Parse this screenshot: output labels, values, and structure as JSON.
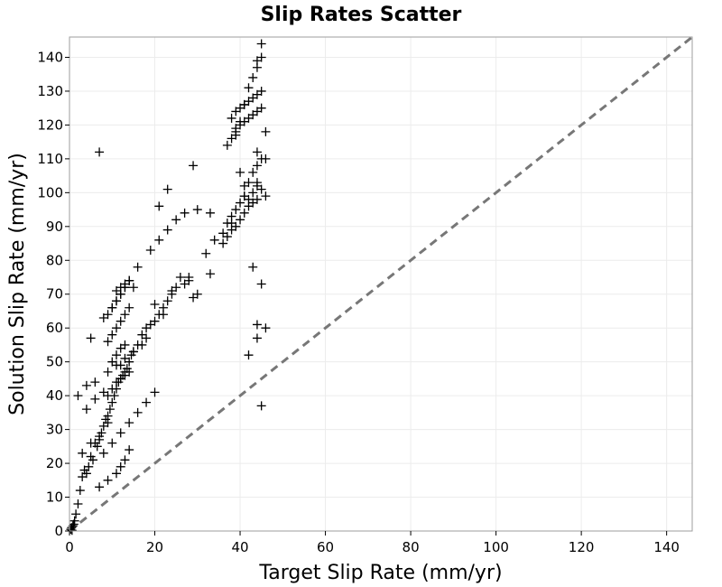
{
  "chart_data": {
    "type": "scatter",
    "title": "Slip Rates Scatter",
    "xlabel": "Target Slip Rate (mm/yr)",
    "ylabel": "Solution Slip Rate (mm/yr)",
    "xlim": [
      0,
      146
    ],
    "ylim": [
      0,
      146
    ],
    "xticks": [
      0,
      20,
      40,
      60,
      80,
      100,
      120,
      140
    ],
    "yticks": [
      0,
      10,
      20,
      30,
      40,
      50,
      60,
      70,
      80,
      90,
      100,
      110,
      120,
      130,
      140
    ],
    "grid": true,
    "marker": "plus",
    "reference_line": "y = x (dashed)",
    "colors": {
      "marker": "#000000",
      "reference": "#777777",
      "grid": "#ececec",
      "frame": "#9e9e9e"
    },
    "x": [
      0.3,
      0.5,
      0.8,
      1,
      0.6,
      1.2,
      1.5,
      2,
      2.5,
      3,
      3.5,
      4,
      4.5,
      5,
      5.5,
      6,
      6.5,
      7,
      7.5,
      8,
      8.5,
      9,
      9.5,
      10,
      10.5,
      11,
      11.5,
      12,
      12.5,
      13,
      13.5,
      14,
      14.5,
      15,
      16,
      17,
      18,
      19,
      20,
      21,
      22,
      23,
      24,
      25,
      26,
      27,
      28,
      29,
      30,
      32,
      33,
      34,
      36,
      37,
      38,
      39,
      40,
      41,
      42,
      43,
      44,
      45,
      46,
      9,
      10,
      11,
      12,
      13,
      14,
      10,
      11,
      12,
      13,
      14,
      15,
      8,
      9,
      10,
      11,
      12,
      13,
      14,
      9,
      10,
      11,
      12,
      13,
      14,
      11,
      12,
      13,
      14,
      10,
      11,
      12,
      13,
      38,
      39,
      40,
      41,
      42,
      43,
      44,
      45,
      39,
      40,
      41,
      42,
      43,
      44,
      45,
      37,
      38,
      39,
      40,
      41,
      42,
      43,
      44,
      45,
      36,
      37,
      38,
      39,
      40,
      41,
      42,
      43,
      44,
      41,
      42,
      43,
      44,
      45,
      3,
      5,
      7,
      9,
      4,
      6,
      8,
      2,
      4,
      6,
      12,
      18,
      22,
      20,
      24,
      28,
      16,
      19,
      21,
      23,
      25,
      27,
      30,
      21,
      23,
      44,
      45,
      46,
      44,
      45,
      42,
      44,
      40,
      38,
      43,
      44,
      45,
      46,
      7,
      9,
      11,
      13,
      15,
      17,
      5,
      7,
      9,
      11,
      12,
      13,
      14,
      8,
      10,
      12,
      14,
      16,
      18,
      20,
      33,
      29,
      39,
      44,
      41,
      46
    ],
    "y": [
      0.5,
      1,
      1.5,
      2,
      0.2,
      3,
      5,
      8,
      12,
      16,
      18,
      17,
      19,
      22,
      21,
      26,
      25,
      27,
      29,
      31,
      33,
      34,
      36,
      38,
      40,
      42,
      44,
      45,
      46,
      47,
      48,
      50,
      52,
      53,
      55,
      58,
      60,
      61,
      62,
      64,
      66,
      68,
      70,
      72,
      75,
      73,
      74,
      69,
      70,
      82,
      94,
      86,
      88,
      91,
      93,
      95,
      97,
      99,
      98,
      100,
      102,
      101,
      99,
      56,
      58,
      60,
      62,
      64,
      66,
      66,
      68,
      70,
      72,
      74,
      72,
      63,
      64,
      66,
      68,
      70,
      72,
      74,
      40,
      42,
      44,
      45,
      46,
      47,
      71,
      72,
      73,
      74,
      50,
      52,
      54,
      55,
      122,
      124,
      125,
      126,
      127,
      128,
      129,
      130,
      119,
      120,
      121,
      122,
      123,
      124,
      125,
      114,
      116,
      118,
      121,
      126,
      131,
      134,
      137,
      140,
      85,
      87,
      89,
      90,
      92,
      94,
      96,
      97,
      98,
      99,
      103,
      106,
      108,
      110,
      23,
      26,
      28,
      32,
      36,
      39,
      41,
      40,
      43,
      44,
      49,
      57,
      64,
      67,
      71,
      75,
      78,
      83,
      86,
      89,
      92,
      94,
      95,
      96,
      101,
      103,
      73,
      60,
      61,
      37,
      52,
      57,
      106,
      91,
      78,
      139,
      144,
      118,
      112,
      47,
      49,
      51,
      53,
      55,
      57,
      13,
      15,
      17,
      19,
      21,
      24,
      23,
      26,
      29,
      32,
      35,
      38,
      41,
      76,
      108,
      117,
      112,
      102,
      110
    ]
  }
}
